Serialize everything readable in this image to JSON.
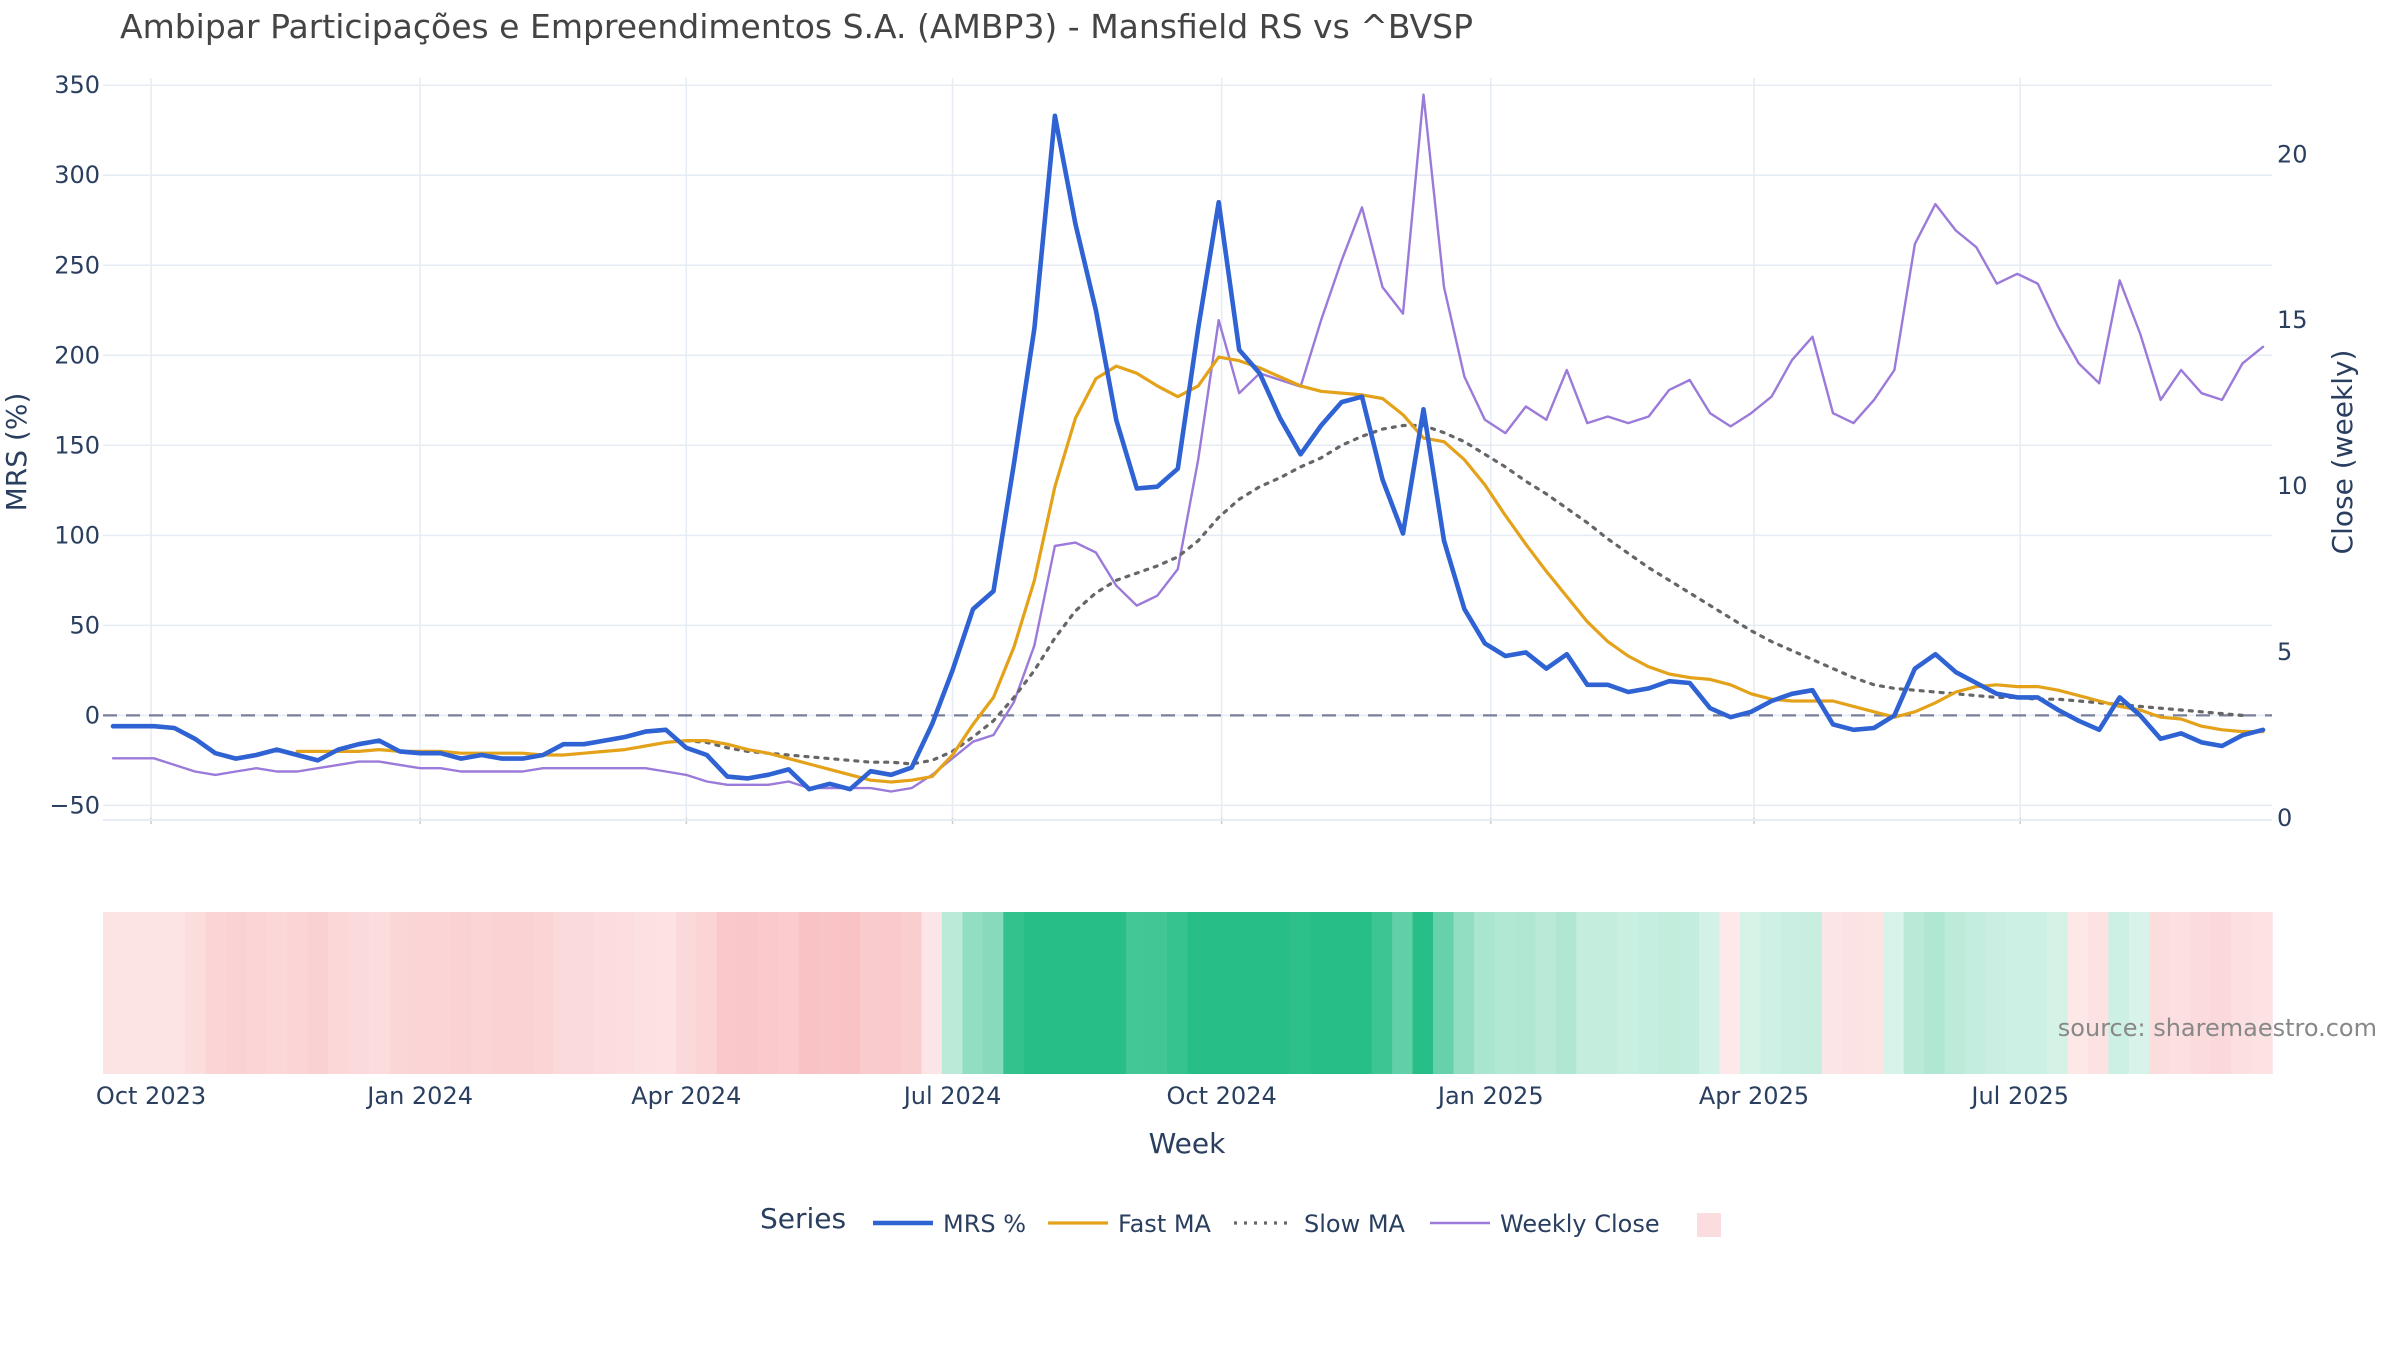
{
  "chart_data": {
    "type": "line",
    "title": "Ambipar Participações e Empreendimentos S.A. (AMBP3) - Mansfield RS vs ^BVSP",
    "xlabel": "Week",
    "ylabel": "MRS (%)",
    "y2label": "Close (weekly)",
    "ylim": [
      -57,
      354
    ],
    "y2lim": [
      0,
      22.3
    ],
    "yticks": [
      "350",
      "300",
      "250",
      "200",
      "150",
      "100",
      "50",
      "0",
      "−50"
    ],
    "y2ticks": [
      "20",
      "15",
      "10",
      "5",
      "0"
    ],
    "xticks": [
      {
        "label": "Oct 2023",
        "date": "2023-10-01"
      },
      {
        "label": "Jan 2024",
        "date": "2024-01-01"
      },
      {
        "label": "Apr 2024",
        "date": "2024-04-01"
      },
      {
        "label": "Jul 2024",
        "date": "2024-07-01"
      },
      {
        "label": "Oct 2024",
        "date": "2024-10-01"
      },
      {
        "label": "Jan 2025",
        "date": "2025-01-01"
      },
      {
        "label": "Apr 2025",
        "date": "2025-04-01"
      },
      {
        "label": "Jul 2025",
        "date": "2025-07-01"
      }
    ],
    "x_start": "2023-09-18",
    "x_step_days": 7,
    "grid": true,
    "zero_line": 0,
    "legend": {
      "title": "Series",
      "position": "bottom"
    },
    "source": "source: sharemaestro.com",
    "series": [
      {
        "name": "MRS %",
        "axis": "y",
        "color": "#2f62d3",
        "style": "solid",
        "values": [
          -6,
          -6,
          -6,
          -7,
          -13,
          -21,
          -24,
          -22,
          -19,
          -22,
          -25,
          -19,
          -16,
          -14,
          -20,
          -21,
          -21,
          -24,
          -22,
          -24,
          -24,
          -22,
          -16,
          -16,
          -14,
          -12,
          -9,
          -8,
          -18,
          -22,
          -34,
          -35,
          -33,
          -30,
          -41,
          -38,
          -41,
          -31,
          -33,
          -29,
          -5,
          25,
          59,
          69,
          140,
          215,
          333,
          273,
          225,
          164,
          126,
          127,
          137,
          215,
          285,
          203,
          190,
          165,
          145,
          161,
          174,
          177,
          131,
          101,
          170,
          97,
          59,
          40,
          33,
          35,
          26,
          34,
          17,
          17,
          13,
          15,
          19,
          18,
          4,
          -1,
          2,
          8,
          12,
          14,
          -5,
          -8,
          -7,
          0,
          26,
          34,
          24,
          18,
          12,
          10,
          10,
          3,
          -3,
          -8,
          10,
          0,
          -13,
          -10,
          -15,
          -17,
          -11,
          -8
        ]
      },
      {
        "name": "Fast MA",
        "axis": "y",
        "color": "#e3a21a",
        "style": "solid",
        "values": [
          null,
          null,
          null,
          null,
          null,
          null,
          null,
          null,
          null,
          -20,
          -20,
          -20,
          -20,
          -19,
          -20,
          -20,
          -20,
          -21,
          -21,
          -21,
          -21,
          -22,
          -22,
          -21,
          -20,
          -19,
          -17,
          -15,
          -14,
          -14,
          -16,
          -19,
          -21,
          -24,
          -27,
          -30,
          -33,
          -36,
          -37,
          -36,
          -34,
          -22,
          -5,
          10,
          38,
          75,
          127,
          165,
          187,
          194,
          190,
          183,
          177,
          183,
          199,
          197,
          193,
          188,
          183,
          180,
          179,
          178,
          176,
          167,
          154,
          152,
          142,
          128,
          111,
          95,
          80,
          66,
          52,
          41,
          33,
          27,
          23,
          21,
          20,
          17,
          12,
          9,
          8,
          8,
          8,
          5,
          2,
          -1,
          2,
          7,
          13,
          16,
          17,
          16,
          16,
          14,
          11,
          8,
          5,
          3,
          -1,
          -2,
          -6,
          -8,
          -9,
          -9
        ]
      },
      {
        "name": "Slow MA",
        "axis": "y",
        "color": "#666666",
        "style": "dotted",
        "values": [
          null,
          null,
          null,
          null,
          null,
          null,
          null,
          null,
          null,
          null,
          null,
          null,
          null,
          null,
          null,
          null,
          null,
          null,
          null,
          null,
          null,
          null,
          null,
          null,
          null,
          null,
          null,
          null,
          -14,
          -15,
          -18,
          -20,
          -21,
          -22,
          -23,
          -24,
          -25,
          -26,
          -26,
          -27,
          -25,
          -20,
          -12,
          -3,
          10,
          25,
          43,
          58,
          68,
          75,
          79,
          83,
          88,
          97,
          110,
          120,
          127,
          132,
          138,
          143,
          150,
          155,
          159,
          161,
          161,
          157,
          152,
          145,
          138,
          130,
          123,
          115,
          107,
          98,
          90,
          82,
          75,
          68,
          61,
          54,
          47,
          41,
          36,
          31,
          26,
          21,
          17,
          15,
          14,
          13,
          12,
          11,
          10,
          10,
          9,
          9,
          8,
          7,
          6,
          5,
          4,
          3,
          2,
          1,
          0
        ]
      },
      {
        "name": "Weekly Close",
        "axis": "y2",
        "color": "#9b7ad9",
        "style": "solid",
        "values": [
          1.8,
          1.8,
          1.8,
          1.6,
          1.4,
          1.3,
          1.4,
          1.5,
          1.4,
          1.4,
          1.5,
          1.6,
          1.7,
          1.7,
          1.6,
          1.5,
          1.5,
          1.4,
          1.4,
          1.4,
          1.4,
          1.5,
          1.5,
          1.5,
          1.5,
          1.5,
          1.5,
          1.4,
          1.3,
          1.1,
          1.0,
          1.0,
          1.0,
          1.1,
          0.9,
          0.9,
          0.9,
          0.9,
          0.8,
          0.9,
          1.3,
          1.8,
          2.3,
          2.5,
          3.5,
          5.2,
          8.2,
          8.3,
          8.0,
          7.0,
          6.4,
          6.7,
          7.5,
          10.8,
          15.0,
          12.8,
          13.4,
          13.2,
          13.0,
          15.0,
          16.8,
          18.4,
          16.0,
          15.2,
          21.8,
          16.0,
          13.3,
          12.0,
          11.6,
          12.4,
          12.0,
          13.5,
          11.9,
          12.1,
          11.9,
          12.1,
          12.9,
          13.2,
          12.2,
          11.8,
          12.2,
          12.7,
          13.8,
          14.5,
          12.2,
          11.9,
          12.6,
          13.5,
          17.3,
          18.5,
          17.7,
          17.2,
          16.1,
          16.4,
          16.1,
          14.8,
          13.7,
          13.1,
          16.2,
          14.6,
          12.6,
          13.5,
          12.8,
          12.6,
          13.7,
          14.2
        ]
      }
    ],
    "regime_strip": {
      "values": [
        -6,
        -6,
        -6,
        -7,
        -13,
        -21,
        -24,
        -22,
        -19,
        -22,
        -25,
        -19,
        -16,
        -14,
        -20,
        -21,
        -21,
        -24,
        -22,
        -24,
        -24,
        -22,
        -16,
        -16,
        -14,
        -12,
        -9,
        -8,
        -18,
        -22,
        -34,
        -35,
        -33,
        -30,
        -41,
        -38,
        -41,
        -31,
        -33,
        -29,
        -5,
        25,
        59,
        69,
        140,
        215,
        333,
        273,
        225,
        164,
        126,
        127,
        137,
        215,
        285,
        203,
        190,
        165,
        145,
        161,
        174,
        177,
        131,
        101,
        170,
        97,
        59,
        40,
        33,
        35,
        26,
        34,
        17,
        17,
        13,
        15,
        19,
        18,
        4,
        -1,
        2,
        8,
        12,
        14,
        -5,
        -8,
        -7,
        0,
        26,
        34,
        24,
        18,
        12,
        10,
        10,
        3,
        -3,
        -8,
        10,
        0,
        -13,
        -10,
        -15,
        -17,
        -11,
        -8
      ],
      "positive_color": "#27be87",
      "negative_color": "#f9c2c4"
    }
  }
}
